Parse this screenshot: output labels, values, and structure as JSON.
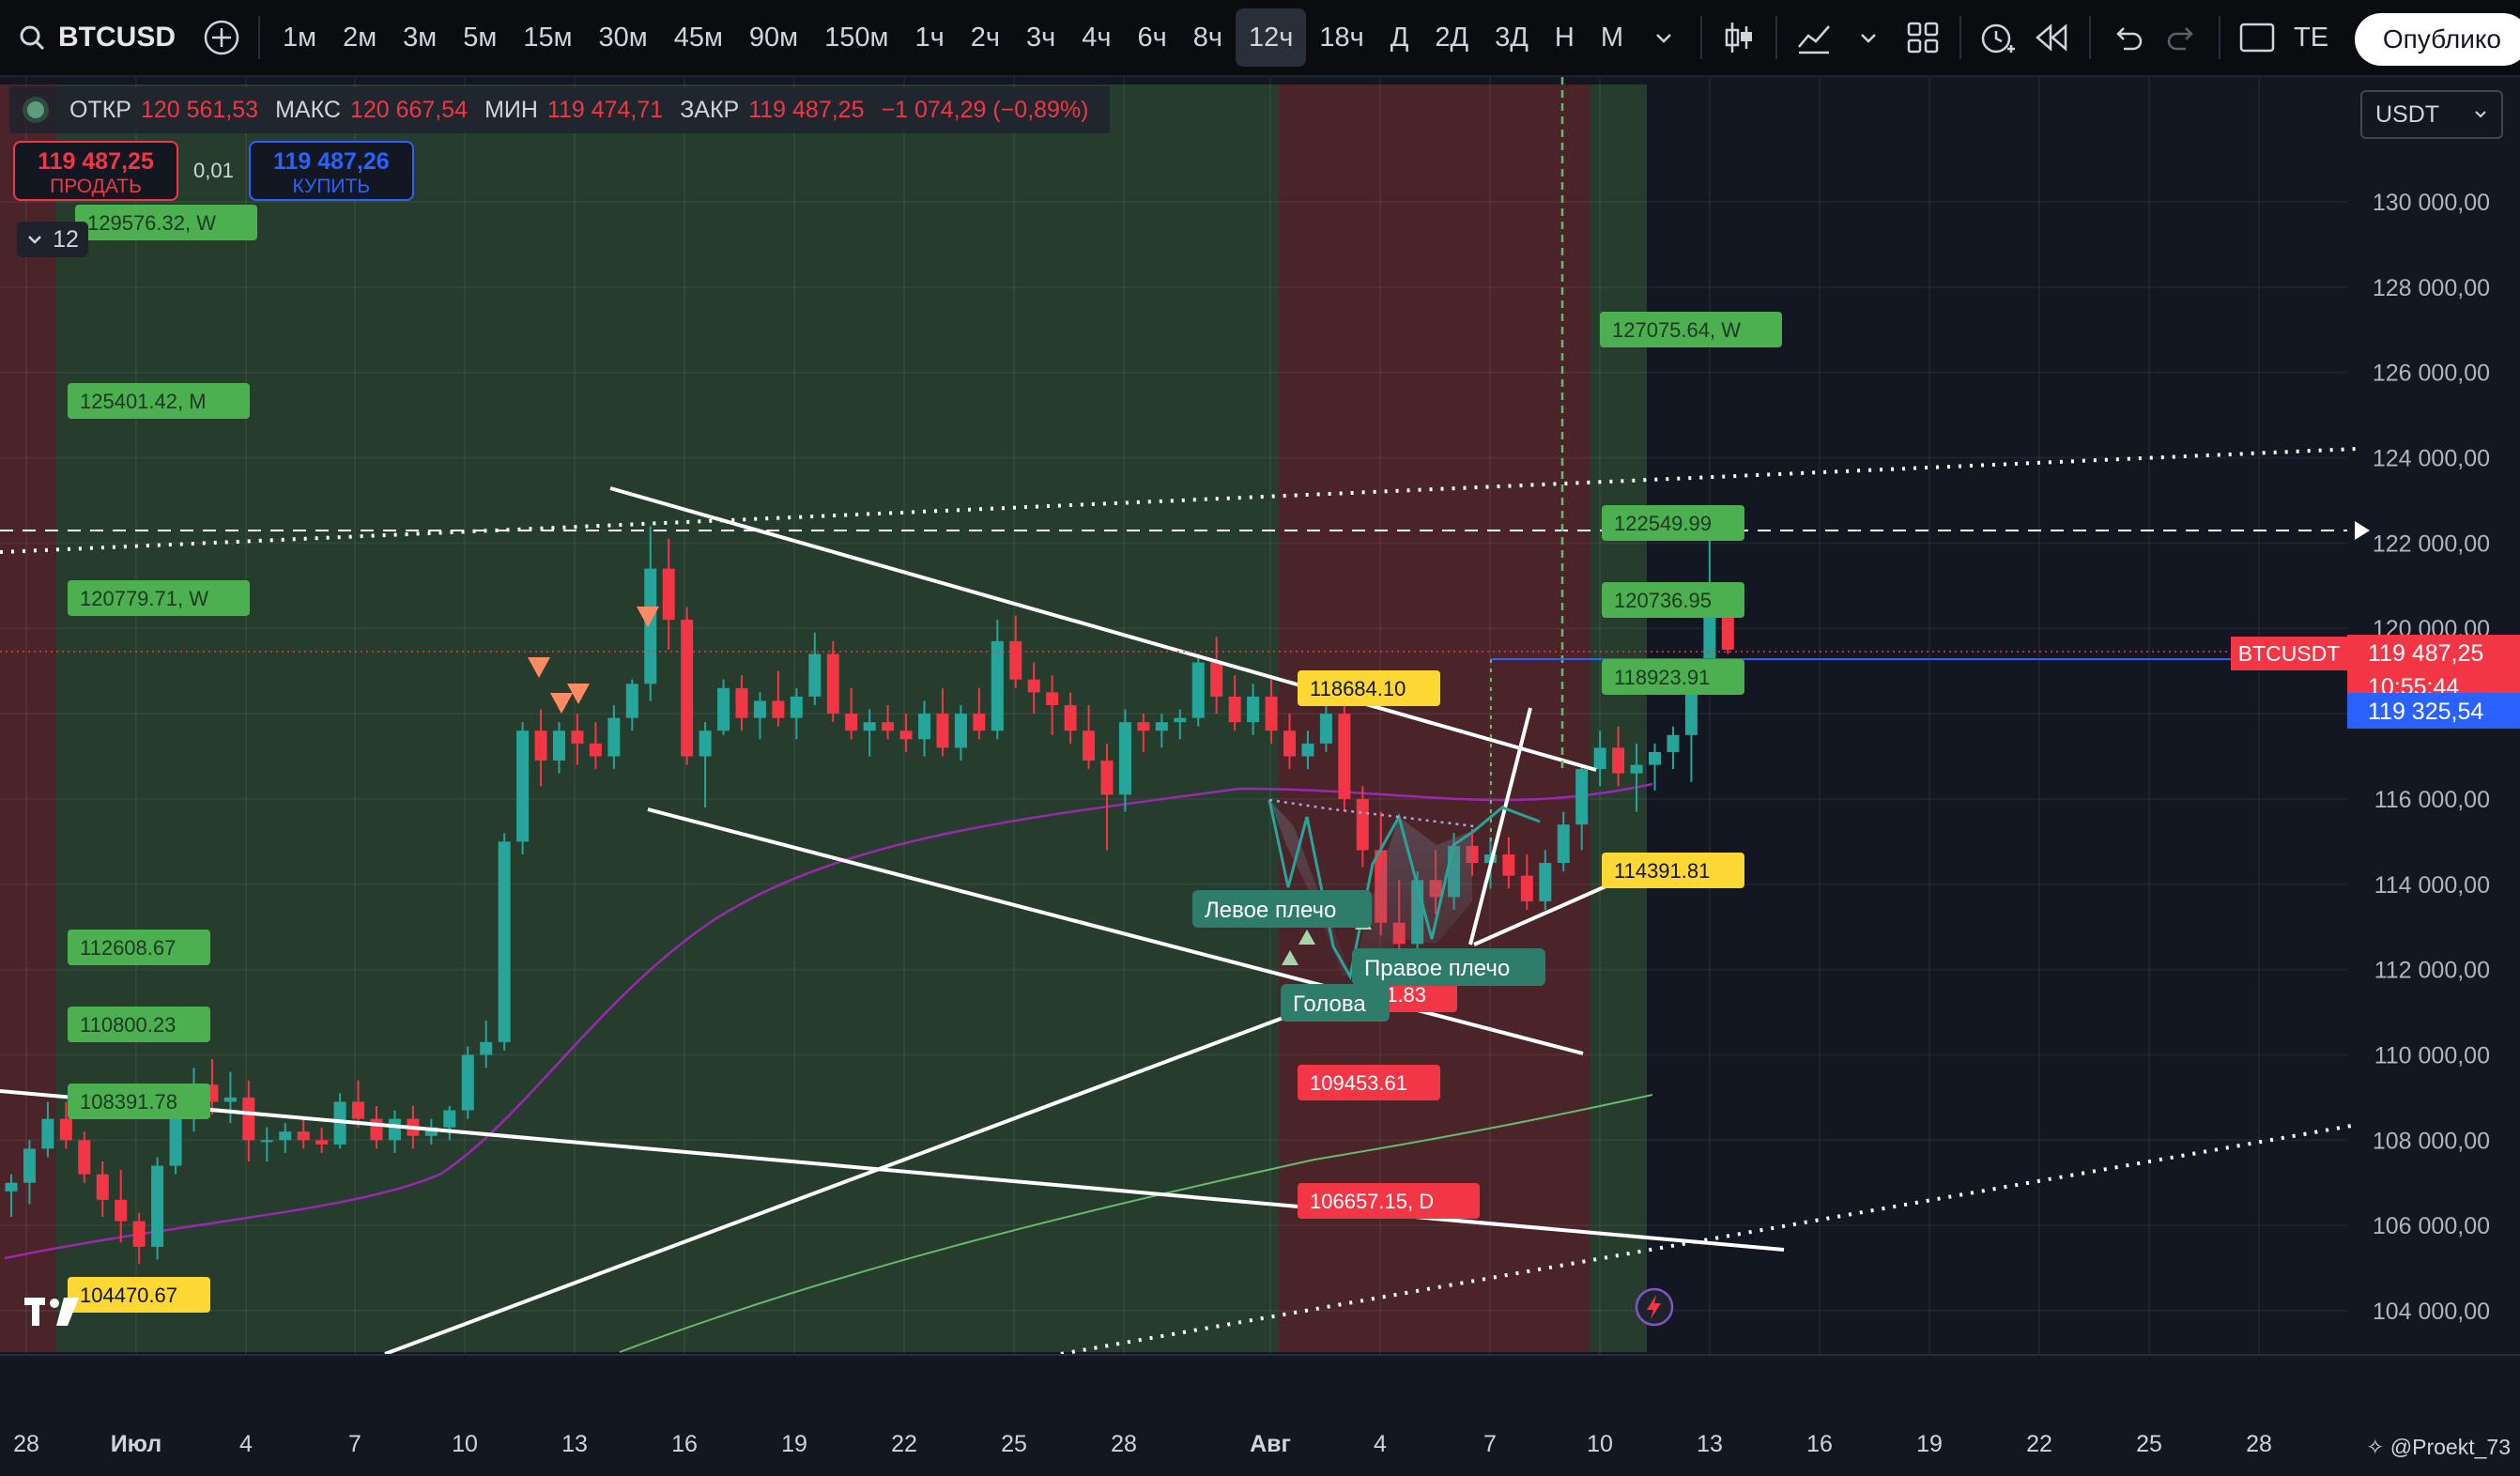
{
  "toolbar": {
    "symbol": "BTCUSD",
    "intervals": [
      "1м",
      "2м",
      "3м",
      "5м",
      "15м",
      "30м",
      "45м",
      "90м",
      "150м",
      "1ч",
      "2ч",
      "3ч",
      "4ч",
      "6ч",
      "8ч",
      "12ч",
      "18ч",
      "Д",
      "2Д",
      "3Д",
      "Н",
      "М"
    ],
    "active_interval": "12ч",
    "publish_label": "Опублико",
    "cut_text": "ТЕ"
  },
  "legend": {
    "open_label": "ОТКР",
    "open": "120 561,53",
    "high_label": "МАКС",
    "high": "120 667,54",
    "low_label": "МИН",
    "low": "119 474,71",
    "close_label": "ЗАКР",
    "close": "119 487,25",
    "change": "−1 074,29 (−0,89%)"
  },
  "trade": {
    "sell_price": "119 487,25",
    "sell_label": "ПРОДАТЬ",
    "qty": "0,01",
    "buy_price": "119 487,26",
    "buy_label": "КУПИТЬ"
  },
  "collapse_count": "12",
  "currency": "USDT",
  "colors": {
    "up": "#26a69a",
    "down": "#f23645",
    "bg": "#131722",
    "green_zone": "#263d2e",
    "red_zone": "#4a2429"
  },
  "price_axis": [
    "130 000,00",
    "128 000,00",
    "126 000,00",
    "124 000,00",
    "122 000,00",
    "120 000,00",
    "118 000,00",
    "116 000,00",
    "114 000,00",
    "112 000,00",
    "110 000,00",
    "108 000,00",
    "106 000,00",
    "104 000,00"
  ],
  "price_tags": {
    "symbol": "BTCUSDT",
    "last": "119 487,25",
    "countdown": "10:55:44",
    "other": "119 325,54"
  },
  "time_axis": [
    "28",
    "Июл",
    "4",
    "7",
    "10",
    "13",
    "16",
    "19",
    "22",
    "25",
    "28",
    "Авг",
    "4",
    "7",
    "10",
    "13",
    "16",
    "19",
    "22",
    "25",
    "28"
  ],
  "levels": {
    "l129": "129576.32, W",
    "l125": "125401.42, M",
    "l120w": "120779.71, W",
    "l112": "112608.67",
    "l110": "110800.23",
    "l108": "108391.78",
    "l104": "104470.67",
    "l127": "127075.64, W",
    "l1225": "122549.99",
    "l1207": "120736.95",
    "l1189": "118923.91",
    "l1186": "118684.10",
    "l1143": "114391.81",
    "l1118": "111.83",
    "l1094": "109453.61",
    "l1066": "106657.15, D"
  },
  "pattern_labels": {
    "left": "Левое плечо",
    "head": "Голова",
    "right": "Правое плечо"
  },
  "watermark": "@Proekt_73"
}
